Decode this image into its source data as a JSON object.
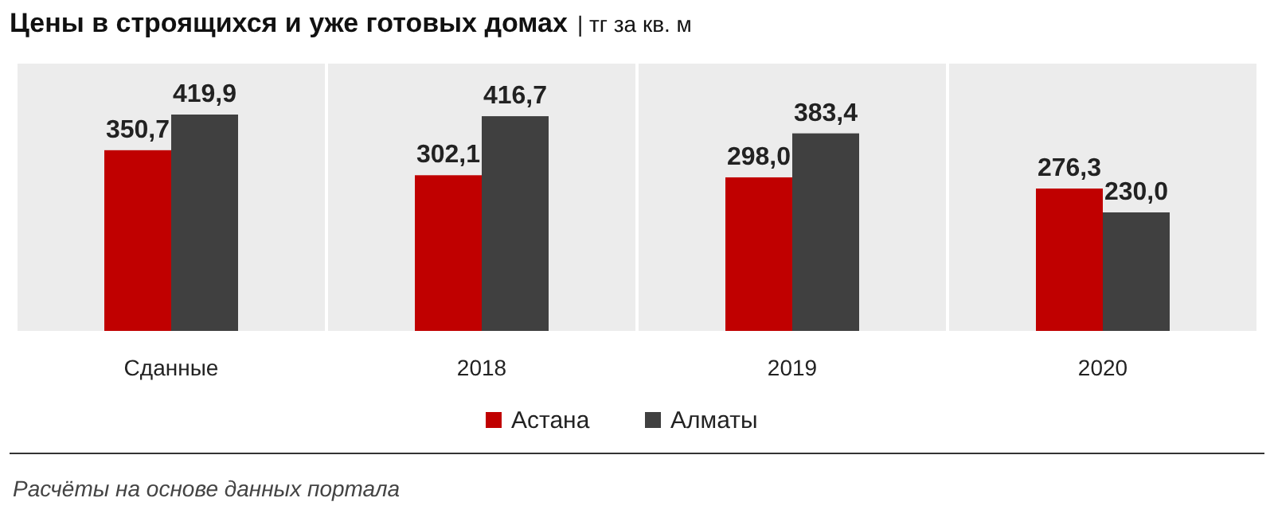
{
  "chart_data": {
    "type": "bar",
    "title": "Цены в строящихся и уже готовых домах",
    "subtitle": "| тг за кв. м",
    "categories": [
      "Сданные",
      "2018",
      "2019",
      "2020"
    ],
    "series": [
      {
        "name": "Астана",
        "color": "#c00000",
        "values": [
          350.7,
          302.1,
          298.0,
          276.3
        ],
        "value_labels": [
          "350,7",
          "302,1",
          "298,0",
          "276,3"
        ]
      },
      {
        "name": "Алматы",
        "color": "#404040",
        "values": [
          419.9,
          416.7,
          383.4,
          230.0
        ],
        "value_labels": [
          "419,9",
          "416,7",
          "383,4",
          "230,0"
        ]
      }
    ],
    "legend": "bottom",
    "annotations": [
      "Расчёты на основе данных портала"
    ]
  }
}
